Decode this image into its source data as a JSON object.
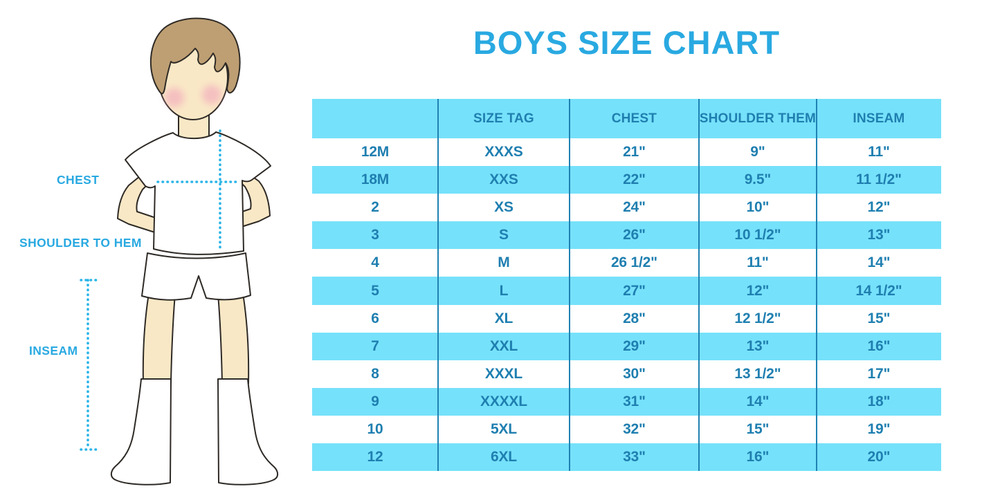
{
  "title": "BOYS SIZE CHART",
  "figure": {
    "labels": {
      "chest": "CHEST",
      "shoulder_to_hem": "SHOULDER TO HEM",
      "inseam": "INSEAM"
    }
  },
  "chart_data": {
    "type": "table",
    "title": "BOYS SIZE CHART",
    "columns": [
      "",
      "SIZE TAG",
      "CHEST",
      "SHOULDER THEM",
      "INSEAM"
    ],
    "rows": [
      [
        "12M",
        "XXXS",
        "21\"",
        "9\"",
        "11\""
      ],
      [
        "18M",
        "XXS",
        "22\"",
        "9.5\"",
        "11 1/2\""
      ],
      [
        "2",
        "XS",
        "24\"",
        "10\"",
        "12\""
      ],
      [
        "3",
        "S",
        "26\"",
        "10 1/2\"",
        "13\""
      ],
      [
        "4",
        "M",
        "26 1/2\"",
        "11\"",
        "14\""
      ],
      [
        "5",
        "L",
        "27\"",
        "12\"",
        "14 1/2\""
      ],
      [
        "6",
        "XL",
        "28\"",
        "12 1/2\"",
        "15\""
      ],
      [
        "7",
        "XXL",
        "29\"",
        "13\"",
        "16\""
      ],
      [
        "8",
        "XXXL",
        "30\"",
        "13 1/2\"",
        "17\""
      ],
      [
        "9",
        "XXXXL",
        "31\"",
        "14\"",
        "18\""
      ],
      [
        "10",
        "5XL",
        "32\"",
        "15\"",
        "19\""
      ],
      [
        "12",
        "6XL",
        "33\"",
        "16\"",
        "20\""
      ]
    ],
    "layout": {
      "striped": true,
      "stripe_colors": [
        "#FFFFFF",
        "#76E1FA"
      ],
      "header_background": "#76E1FA"
    }
  },
  "colors": {
    "accent_blue": "#29A9E1",
    "row_blue": "#76E1FA",
    "divider_blue": "#1F81B2",
    "cell_text_blue": "#1F7FB0",
    "dotted_line_cyan": "#29B4E8",
    "skin": "#F9E8C6",
    "hair": "#BE9F73"
  }
}
